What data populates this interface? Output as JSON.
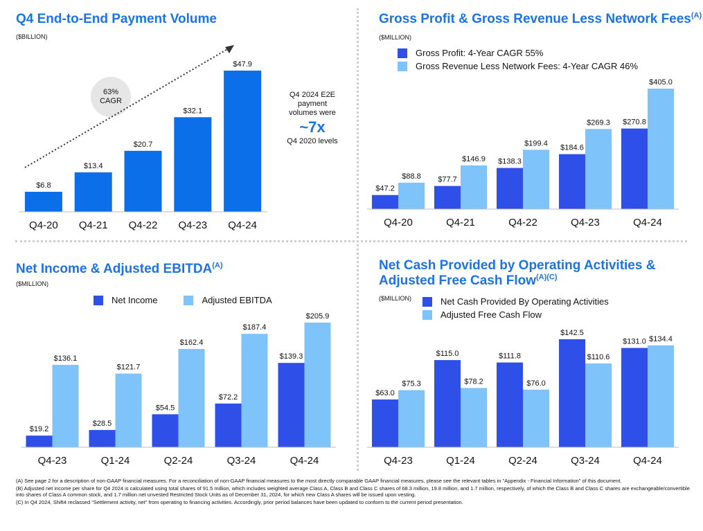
{
  "colors": {
    "accent": "#1a73e8",
    "dark_bar": "#2e4fe8",
    "light_bar": "#7fc3fb",
    "e2e_bar": "#0a6fe8"
  },
  "panels": {
    "p1": {
      "title": "Q4 End-to-End Payment Volume",
      "unit": "($BILLION)"
    },
    "p2": {
      "title": "Gross Profit & Gross Revenue Less Network Fees",
      "sup": "(A)",
      "unit": "($MILLION)"
    },
    "p3": {
      "title": "Net Income & Adjusted EBITDA",
      "sup": "(A)",
      "unit": "($MILLION)"
    },
    "p4": {
      "title_line1": "Net Cash Provided by Operating Activities &",
      "title_line2": "Adjusted Free Cash Flow",
      "sup": "(A)(C)",
      "unit": "($MILLION)"
    }
  },
  "cagr_bubble": {
    "line1": "63%",
    "line2": "CAGR"
  },
  "callout": {
    "line1": "Q4 2024 E2E",
    "line2": "payment",
    "line3": "volumes were",
    "big": "~7x",
    "line4": "Q4 2020 levels"
  },
  "chart_data": [
    {
      "type": "bar",
      "title": "Q4 End-to-End Payment Volume",
      "unit": "$BILLION",
      "categories": [
        "Q4-20",
        "Q4-21",
        "Q4-22",
        "Q4-23",
        "Q4-24"
      ],
      "values": [
        6.8,
        13.4,
        20.7,
        32.1,
        47.9
      ],
      "labels": [
        "$6.8",
        "$13.4",
        "$20.7",
        "$32.1",
        "$47.9"
      ],
      "annotation": "63% CAGR"
    },
    {
      "type": "bar",
      "title": "Gross Profit & Gross Revenue Less Network Fees",
      "unit": "$MILLION",
      "categories": [
        "Q4-20",
        "Q4-21",
        "Q4-22",
        "Q4-23",
        "Q4-24"
      ],
      "series": [
        {
          "name": "Gross Profit: 4-Year CAGR 55%",
          "values": [
            47.2,
            77.7,
            138.3,
            184.6,
            270.8
          ],
          "labels": [
            "$47.2",
            "$77.7",
            "$138.3",
            "$184.6",
            "$270.8"
          ]
        },
        {
          "name": "Gross Revenue Less Network Fees: 4-Year CAGR 46%",
          "values": [
            88.8,
            146.9,
            199.4,
            269.3,
            405.0
          ],
          "labels": [
            "$88.8",
            "$146.9",
            "$199.4",
            "$269.3",
            "$405.0"
          ]
        }
      ],
      "legend": "top-left"
    },
    {
      "type": "bar",
      "title": "Net Income & Adjusted EBITDA",
      "unit": "$MILLION",
      "categories": [
        "Q4-23",
        "Q1-24",
        "Q2-24",
        "Q3-24",
        "Q4-24"
      ],
      "series": [
        {
          "name": "Net Income",
          "values": [
            19.2,
            28.5,
            54.5,
            72.2,
            139.3
          ],
          "labels": [
            "$19.2",
            "$28.5",
            "$54.5",
            "$72.2",
            "$139.3"
          ]
        },
        {
          "name": "Adjusted EBITDA",
          "values": [
            136.1,
            121.7,
            162.4,
            187.4,
            205.9
          ],
          "labels": [
            "$136.1",
            "$121.7",
            "$162.4",
            "$187.4",
            "$205.9"
          ]
        }
      ],
      "legend": "top"
    },
    {
      "type": "bar",
      "title": "Net Cash Provided by Operating Activities & Adjusted Free Cash Flow",
      "unit": "$MILLION",
      "categories": [
        "Q4-23",
        "Q1-24",
        "Q2-24",
        "Q3-24",
        "Q4-24"
      ],
      "series": [
        {
          "name": "Net Cash Provided By Operating Activities",
          "values": [
            63.0,
            115.0,
            111.8,
            142.5,
            131.0
          ],
          "labels": [
            "$63.0",
            "$115.0",
            "$111.8",
            "$142.5",
            "$131.0"
          ]
        },
        {
          "name": "Adjusted Free Cash Flow",
          "values": [
            75.3,
            78.2,
            76.0,
            110.6,
            134.4
          ],
          "labels": [
            "$75.3",
            "$78.2",
            "$76.0",
            "$110.6",
            "$134.4"
          ]
        }
      ],
      "legend": "top"
    }
  ],
  "footnotes": {
    "a": "(A) See page 2 for a description of non-GAAP financial measures. For a reconciliation of non-GAAP financial measures to the most directly comparable GAAP financial measures, please see the relevant tables in \"Appendix - Financial Information\" of this document.",
    "b": "(B) Adjusted net income per share for Q4 2024 is calculated using total shares of 91.5 million, which includes weighted average Class A, Class B and Class C shares of 68.3 million, 19.8 million, and 1.7 million, respectively, of which the Class B and Class C shares are exchangeable/convertible into shares of Class A common stock, and 1.7 million net unvested Restricted Stock Units as of December 31, 2024, for which new Class A shares will be issued upon vesting.",
    "c": "(C) In Q4 2024, Shift4 reclassed \"Settlement activity, net\" from operating to financing activities. Accordingly, prior period balances have been updated to conform to the current period presentation."
  }
}
